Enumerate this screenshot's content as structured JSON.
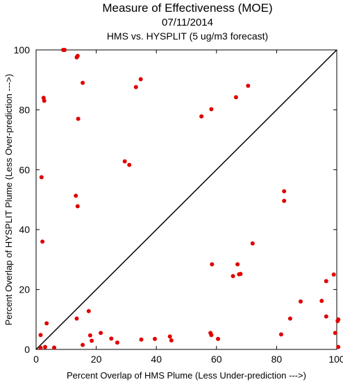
{
  "chart_data": {
    "type": "scatter",
    "title": "Measure of Effectiveness (MOE)",
    "subtitle": "07/11/2014",
    "subtitle2": "HMS vs. HYSPLIT  (5 ug/m3 forecast)",
    "xlabel": "Percent Overlap of HMS Plume (Less Under-prediction --->)",
    "ylabel": "Percent Overlap of HYSPLIT Plume (Less Over-prediction --->)",
    "xlim": [
      0,
      100
    ],
    "ylim": [
      0,
      100
    ],
    "xticks": [
      0,
      20,
      40,
      60,
      80,
      100
    ],
    "yticks": [
      0,
      20,
      40,
      60,
      80,
      100
    ],
    "diagonal": true,
    "grid": false,
    "marker_color": "#e00000",
    "points": [
      [
        9,
        100
      ],
      [
        9.5,
        100
      ],
      [
        13.5,
        97.5
      ],
      [
        13.8,
        98
      ],
      [
        2.5,
        84
      ],
      [
        2.7,
        83
      ],
      [
        15.5,
        89
      ],
      [
        14,
        77
      ],
      [
        34.8,
        90.2
      ],
      [
        33.2,
        87.6
      ],
      [
        58.3,
        80.2
      ],
      [
        70.5,
        88
      ],
      [
        66.5,
        84.2
      ],
      [
        55,
        77.8
      ],
      [
        29.5,
        62.8
      ],
      [
        31,
        61.6
      ],
      [
        1.8,
        57.5
      ],
      [
        13.2,
        51.3
      ],
      [
        13.8,
        47.8
      ],
      [
        82.5,
        52.8
      ],
      [
        82.5,
        49.6
      ],
      [
        2.1,
        36
      ],
      [
        72,
        35.4
      ],
      [
        58.5,
        28.4
      ],
      [
        67,
        28.4
      ],
      [
        67.5,
        25.1
      ],
      [
        68,
        25.2
      ],
      [
        65.5,
        24.5
      ],
      [
        96.5,
        22.8
      ],
      [
        99,
        25
      ],
      [
        17.5,
        12.8
      ],
      [
        13.5,
        10.3
      ],
      [
        88,
        16
      ],
      [
        95,
        16.2
      ],
      [
        84.5,
        10.3
      ],
      [
        96.5,
        11
      ],
      [
        100.5,
        10
      ],
      [
        100.3,
        9.5
      ],
      [
        3.5,
        8.7
      ],
      [
        1.5,
        4.8
      ],
      [
        18,
        4.7
      ],
      [
        21.5,
        5.5
      ],
      [
        58,
        5.5
      ],
      [
        58.3,
        4.8
      ],
      [
        81.5,
        5
      ],
      [
        99.5,
        5.5
      ],
      [
        44.5,
        4.3
      ],
      [
        45,
        3
      ],
      [
        25,
        3.6
      ],
      [
        35,
        3.3
      ],
      [
        39.5,
        3.5
      ],
      [
        60.5,
        3.5
      ],
      [
        18.5,
        2.9
      ],
      [
        27,
        2.3
      ],
      [
        15.5,
        1.5
      ],
      [
        1.5,
        0.5
      ],
      [
        3,
        0.8
      ],
      [
        6,
        0.6
      ],
      [
        100.5,
        0.8
      ]
    ]
  }
}
